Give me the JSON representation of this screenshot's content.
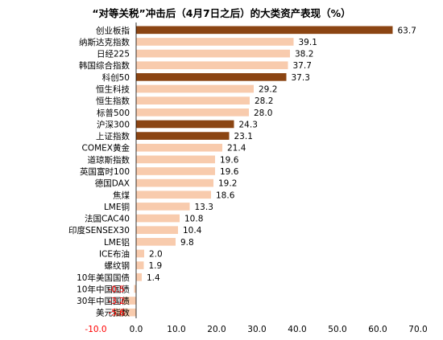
{
  "chart_data": {
    "type": "bar",
    "orientation": "horizontal",
    "title": "“对等关税”冲击后（4月7日之后）的大类资产表现（%）",
    "xlabel": "",
    "ylabel": "",
    "xlim": [
      -10,
      70
    ],
    "xticks": [
      -10,
      0,
      10,
      20,
      30,
      40,
      50,
      60,
      70
    ],
    "xtick_labels": [
      "-10.0",
      "0.0",
      "10.0",
      "20.0",
      "30.0",
      "40.0",
      "50.0",
      "60.0",
      "70.0"
    ],
    "grid": false,
    "legend": "none",
    "categories": [
      "创业板指",
      "纳斯达克指数",
      "日经225",
      "韩国综合指数",
      "科创50",
      "恒生科技",
      "恒生指数",
      "标普500",
      "沪深300",
      "上证指数",
      "COMEX黄金",
      "道琼斯指数",
      "英国富时100",
      "德国DAX",
      "焦煤",
      "LME铜",
      "法国CAC40",
      "印度SENSEX30",
      "LME铝",
      "ICE布油",
      "螺纹钢",
      "10年美国国债",
      "10年中国国债",
      "30年中国国债",
      "美元指数"
    ],
    "values": [
      63.7,
      39.1,
      38.2,
      37.7,
      37.3,
      29.2,
      28.2,
      28.0,
      24.3,
      23.1,
      21.4,
      19.6,
      19.6,
      19.2,
      18.6,
      13.3,
      10.8,
      10.4,
      9.8,
      2.0,
      1.9,
      1.4,
      -0.5,
      -3.2,
      -5.6
    ],
    "value_labels": [
      "63.7",
      "39.1",
      "38.2",
      "37.7",
      "37.3",
      "29.2",
      "28.2",
      "28.0",
      "24.3",
      "23.1",
      "21.4",
      "19.6",
      "19.6",
      "19.2",
      "18.6",
      "13.3",
      "10.8",
      "10.4",
      "9.8",
      "2.0",
      "1.9",
      "1.4",
      "-0.5",
      "-3.2",
      "-5.6"
    ],
    "highlighted": [
      "创业板指",
      "科创50",
      "沪深300",
      "上证指数"
    ],
    "colors": {
      "highlight": "#8B4513",
      "default": "#F8CBAD",
      "negative_label": "#FF0000",
      "positive_label": "#000000",
      "axis": "#000000"
    }
  }
}
